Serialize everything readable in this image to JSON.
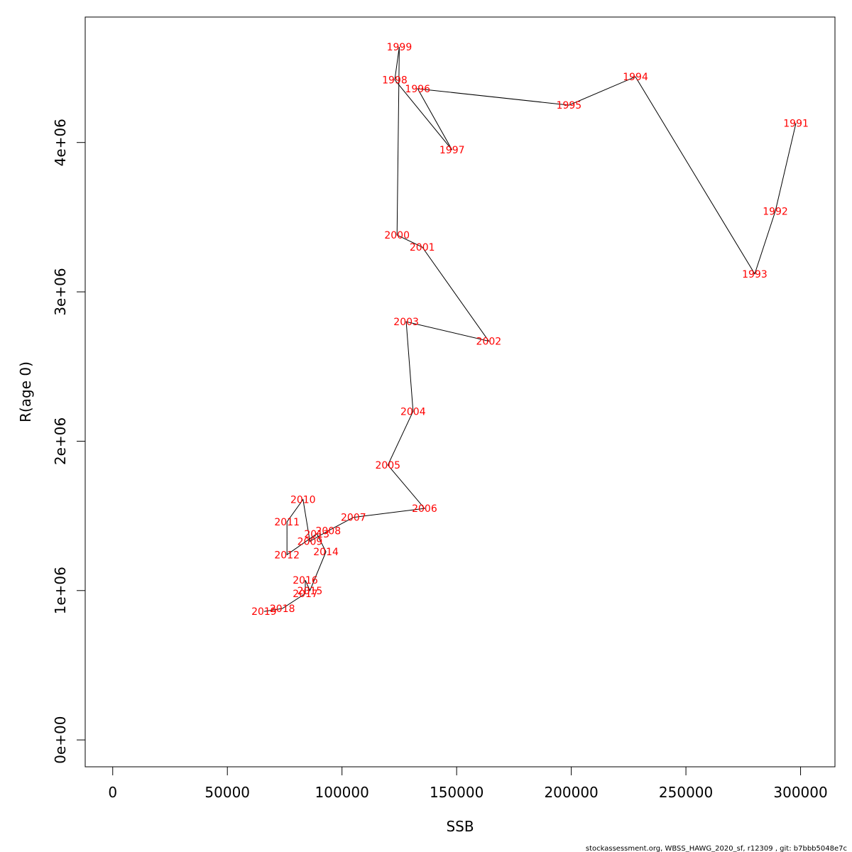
{
  "chart_data": {
    "type": "line",
    "title": "",
    "xlabel": "SSB",
    "ylabel": "R(age 0)",
    "xlim": [
      -12000,
      315000
    ],
    "ylim": [
      -180000,
      4840000
    ],
    "x_ticks": [
      0,
      50000,
      100000,
      150000,
      200000,
      250000,
      300000
    ],
    "x_tick_labels": [
      "0",
      "50000",
      "100000",
      "150000",
      "200000",
      "250000",
      "300000"
    ],
    "y_ticks": [
      0,
      1000000,
      2000000,
      3000000,
      4000000
    ],
    "y_tick_labels": [
      "0e+00",
      "1e+06",
      "2e+06",
      "3e+06",
      "4e+06"
    ],
    "grid": false,
    "line_color": "#000000",
    "label_color": "#ff0000",
    "points": [
      {
        "label": "1991",
        "x": 298000,
        "y": 4130000
      },
      {
        "label": "1992",
        "x": 289000,
        "y": 3540000
      },
      {
        "label": "1993",
        "x": 280000,
        "y": 3120000
      },
      {
        "label": "1994",
        "x": 228000,
        "y": 4440000
      },
      {
        "label": "1995",
        "x": 199000,
        "y": 4250000
      },
      {
        "label": "1996",
        "x": 133000,
        "y": 4360000
      },
      {
        "label": "1997",
        "x": 148000,
        "y": 3950000
      },
      {
        "label": "1998",
        "x": 123000,
        "y": 4420000
      },
      {
        "label": "1999",
        "x": 125000,
        "y": 4640000
      },
      {
        "label": "2000",
        "x": 124000,
        "y": 3380000
      },
      {
        "label": "2001",
        "x": 135000,
        "y": 3300000
      },
      {
        "label": "2002",
        "x": 164000,
        "y": 2670000
      },
      {
        "label": "2003",
        "x": 128000,
        "y": 2800000
      },
      {
        "label": "2004",
        "x": 131000,
        "y": 2200000
      },
      {
        "label": "2005",
        "x": 120000,
        "y": 1840000
      },
      {
        "label": "2006",
        "x": 136000,
        "y": 1550000
      },
      {
        "label": "2007",
        "x": 105000,
        "y": 1490000
      },
      {
        "label": "2008",
        "x": 94000,
        "y": 1400000
      },
      {
        "label": "2009",
        "x": 86000,
        "y": 1330000
      },
      {
        "label": "2010",
        "x": 83000,
        "y": 1610000
      },
      {
        "label": "2011",
        "x": 76000,
        "y": 1460000
      },
      {
        "label": "2012",
        "x": 76000,
        "y": 1240000
      },
      {
        "label": "2013",
        "x": 89000,
        "y": 1380000
      },
      {
        "label": "2014",
        "x": 93000,
        "y": 1260000
      },
      {
        "label": "2015",
        "x": 86000,
        "y": 1000000
      },
      {
        "label": "2016",
        "x": 84000,
        "y": 1070000
      },
      {
        "label": "2017",
        "x": 84000,
        "y": 980000
      },
      {
        "label": "2018",
        "x": 74000,
        "y": 880000
      },
      {
        "label": "2019",
        "x": 66000,
        "y": 860000
      }
    ]
  },
  "footer": "stockassessment.org, WBSS_HAWG_2020_sf, r12309 , git: b7bbb5048e7c"
}
